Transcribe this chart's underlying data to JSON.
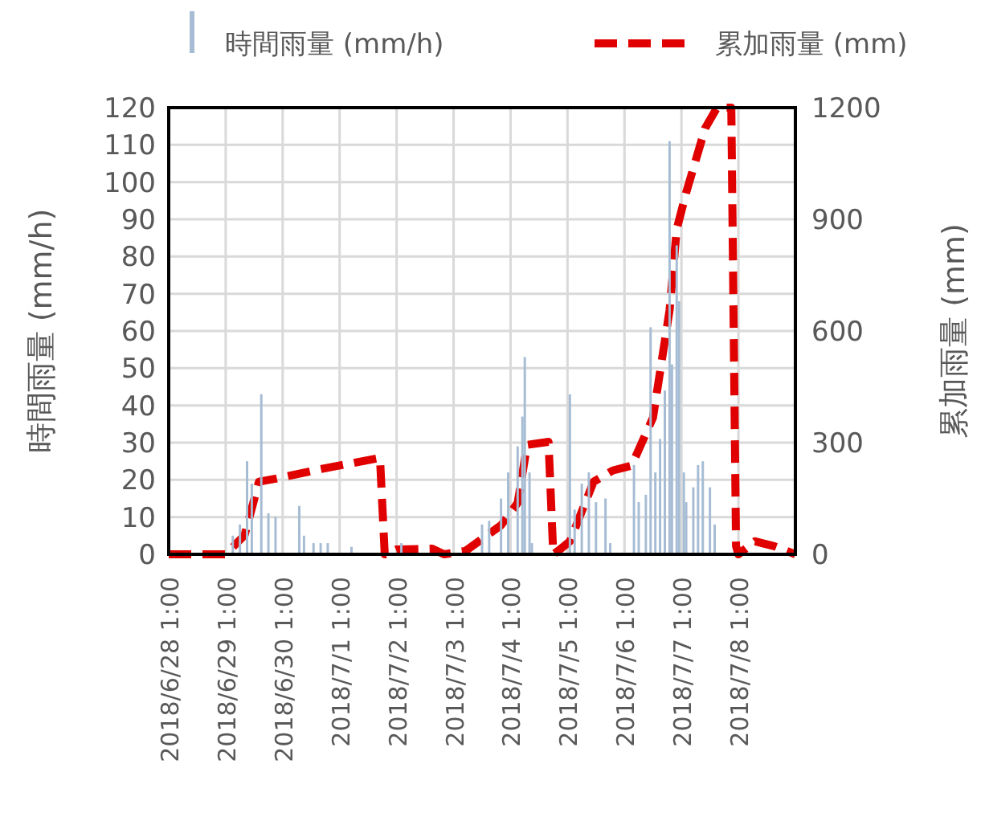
{
  "chart_data": {
    "type": "bar",
    "legend": "top",
    "grid": true,
    "ylabel": "時間雨量 (mm/h)",
    "y2label": "累加雨量 (mm)",
    "xlim": [
      "2018-06-28T01:00",
      "2018-07-09T01:00"
    ],
    "xticks": [
      {
        "value": "2018-06-28T01:00",
        "label": "2018/6/28 1:00"
      },
      {
        "value": "2018-06-29T01:00",
        "label": "2018/6/29 1:00"
      },
      {
        "value": "2018-06-30T01:00",
        "label": "2018/6/30 1:00"
      },
      {
        "value": "2018-07-01T01:00",
        "label": "2018/7/1 1:00"
      },
      {
        "value": "2018-07-02T01:00",
        "label": "2018/7/2 1:00"
      },
      {
        "value": "2018-07-03T01:00",
        "label": "2018/7/3 1:00"
      },
      {
        "value": "2018-07-04T01:00",
        "label": "2018/7/4 1:00"
      },
      {
        "value": "2018-07-05T01:00",
        "label": "2018/7/5 1:00"
      },
      {
        "value": "2018-07-06T01:00",
        "label": "2018/7/6 1:00"
      },
      {
        "value": "2018-07-07T01:00",
        "label": "2018/7/7 1:00"
      },
      {
        "value": "2018-07-08T01:00",
        "label": "2018/7/8 1:00"
      }
    ],
    "ylim": [
      0,
      120
    ],
    "yticks": [
      0,
      10,
      20,
      30,
      40,
      50,
      60,
      70,
      80,
      90,
      100,
      110,
      120
    ],
    "y2lim": [
      0,
      1200
    ],
    "y2ticks": [
      0,
      300,
      600,
      900,
      1200
    ],
    "series": [
      {
        "name": "時間雨量 (mm/h)",
        "color": "#a6bcd4",
        "x": [
          "2018-06-29T04:00",
          "2018-06-29T07:00",
          "2018-06-29T10:00",
          "2018-06-29T12:00",
          "2018-06-29T16:00",
          "2018-06-29T19:00",
          "2018-06-29T22:00",
          "2018-06-30T08:00",
          "2018-06-30T10:00",
          "2018-06-30T14:00",
          "2018-06-30T17:00",
          "2018-06-30T20:00",
          "2018-07-01T06:00",
          "2018-07-02T03:00",
          "2018-07-03T13:00",
          "2018-07-03T16:00",
          "2018-07-03T21:00",
          "2018-07-04T00:00",
          "2018-07-04T04:00",
          "2018-07-04T06:00",
          "2018-07-04T07:00",
          "2018-07-04T09:00",
          "2018-07-04T10:00",
          "2018-07-05T02:00",
          "2018-07-05T04:00",
          "2018-07-05T07:00",
          "2018-07-05T10:00",
          "2018-07-05T13:00",
          "2018-07-05T17:00",
          "2018-07-05T19:00",
          "2018-07-06T05:00",
          "2018-07-06T07:00",
          "2018-07-06T10:00",
          "2018-07-06T12:00",
          "2018-07-06T14:00",
          "2018-07-06T16:00",
          "2018-07-06T18:00",
          "2018-07-06T20:00",
          "2018-07-06T21:00",
          "2018-07-06T23:00",
          "2018-07-07T00:00",
          "2018-07-07T02:00",
          "2018-07-07T03:00",
          "2018-07-07T06:00",
          "2018-07-07T08:00",
          "2018-07-07T10:00",
          "2018-07-07T13:00",
          "2018-07-07T15:00"
        ],
        "values": [
          5,
          8,
          25,
          19,
          43,
          11,
          10,
          13,
          5,
          3,
          3,
          3,
          2,
          3,
          8,
          9,
          15,
          22,
          29,
          37,
          53,
          22,
          3,
          43,
          12,
          19,
          22,
          14,
          15,
          3,
          24,
          14,
          16,
          61,
          22,
          31,
          44,
          111,
          51,
          83,
          68,
          22,
          14,
          18,
          24,
          25,
          18,
          8
        ]
      },
      {
        "name": "累加雨量 (mm)",
        "type": "line",
        "axis": "y2",
        "color": "#e00000",
        "line_style": "dashed",
        "x": [
          "2018-06-28T01:00",
          "2018-06-29T01:00",
          "2018-06-29T09:00",
          "2018-06-29T15:00",
          "2018-06-29T22:00",
          "2018-06-30T17:00",
          "2018-07-01T18:00",
          "2018-07-01T20:00",
          "2018-07-02T01:00",
          "2018-07-02T16:00",
          "2018-07-02T21:00",
          "2018-07-03T06:00",
          "2018-07-03T21:00",
          "2018-07-04T04:00",
          "2018-07-04T08:00",
          "2018-07-04T17:00",
          "2018-07-04T19:00",
          "2018-07-04T21:00",
          "2018-07-05T02:00",
          "2018-07-05T12:00",
          "2018-07-05T20:00",
          "2018-07-06T04:00",
          "2018-07-06T13:00",
          "2018-07-06T20:00",
          "2018-07-06T23:00",
          "2018-07-07T03:00",
          "2018-07-07T11:00",
          "2018-07-07T16:00",
          "2018-07-07T22:00",
          "2018-07-08T00:00",
          "2018-07-08T01:00",
          "2018-07-08T08:00",
          "2018-07-08T16:00",
          "2018-07-09T01:00"
        ],
        "values": [
          0,
          0,
          52,
          195,
          203,
          229,
          259,
          0,
          13,
          15,
          0,
          9,
          78,
          138,
          294,
          302,
          0,
          9,
          35,
          195,
          225,
          238,
          367,
          656,
          873,
          972,
          1145,
          1200,
          1200,
          22,
          0,
          35,
          22,
          0
        ]
      }
    ]
  }
}
